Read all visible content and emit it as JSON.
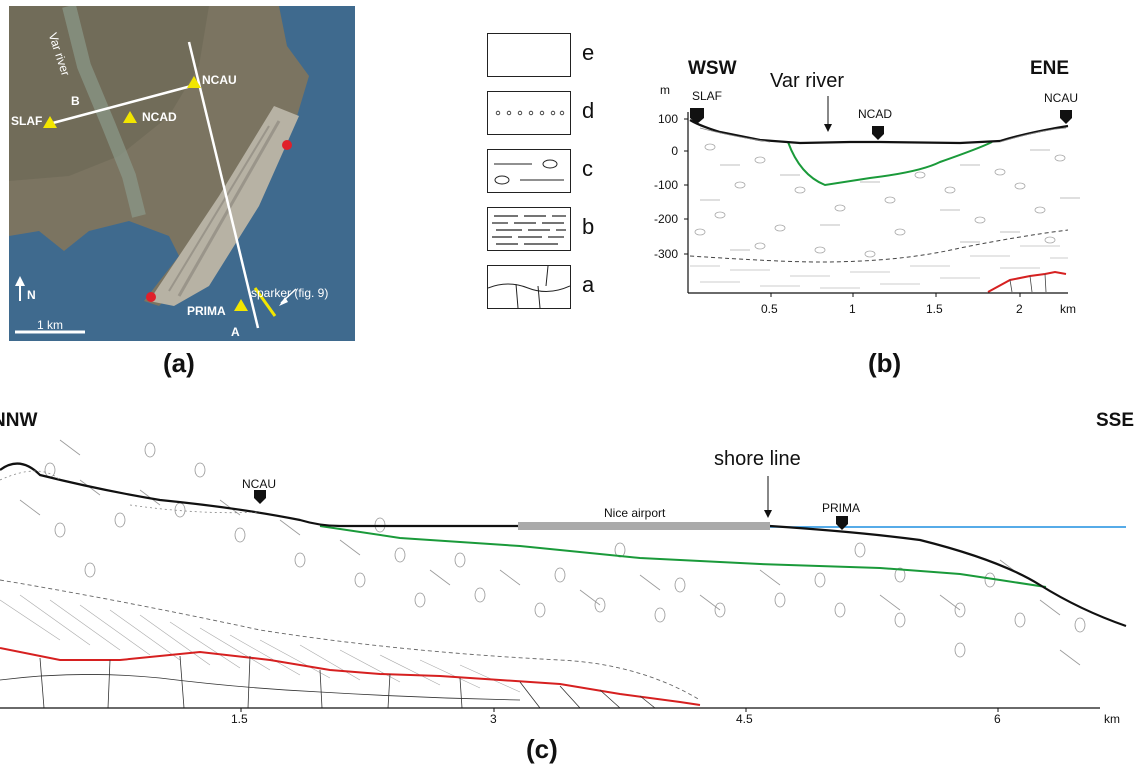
{
  "panel_a": {
    "label": "(a)",
    "stations": [
      "SLAF",
      "NCAD",
      "NCAU",
      "PRIMA"
    ],
    "river_label": "Var river",
    "profile_labels": [
      "A",
      "B"
    ],
    "sparker_label": "sparker (fig. 9)",
    "north_label": "N",
    "scale_label": "1 km"
  },
  "legend": {
    "items": [
      "e",
      "d",
      "c",
      "b",
      "a"
    ]
  },
  "panel_b": {
    "label": "(b)",
    "left_dir": "WSW",
    "right_dir": "ENE",
    "river_label": "Var river",
    "stations": [
      "SLAF",
      "NCAD",
      "NCAU"
    ],
    "y_unit": "m",
    "y_ticks": [
      "100",
      "0",
      "-100",
      "-200",
      "-300"
    ],
    "x_ticks": [
      "0.5",
      "1",
      "1.5",
      "2"
    ],
    "x_unit": "km"
  },
  "panel_c": {
    "label": "(c)",
    "left_dir": "NNW",
    "right_dir": "SSE",
    "shore_label": "shore line",
    "airport_label": "Nice airport",
    "stations": [
      "NCAU",
      "PRIMA"
    ],
    "x_ticks": [
      "1.5",
      "3",
      "4.5",
      "6"
    ],
    "x_unit": "km"
  },
  "colors": {
    "green": "#1a9a3a",
    "red": "#d62020",
    "blue": "#1f8fe0",
    "yellow": "#f2e600",
    "grey": "#aaaaaa"
  }
}
